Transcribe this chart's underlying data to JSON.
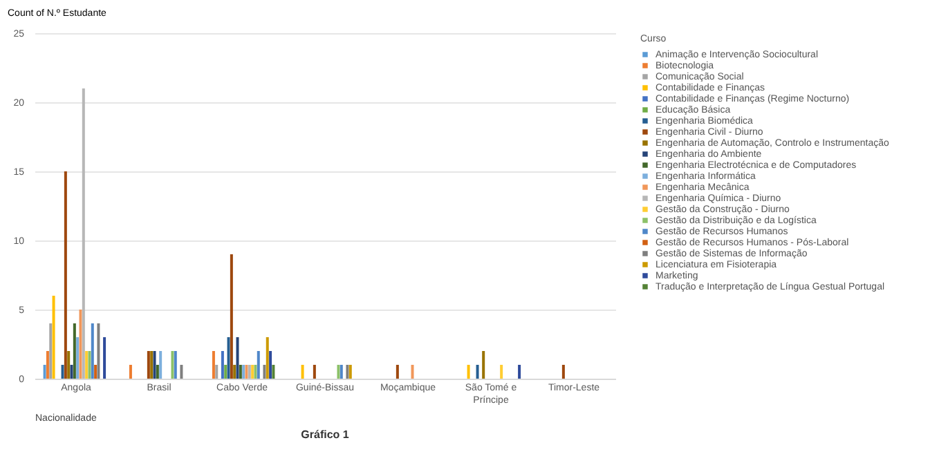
{
  "chart_data": {
    "type": "bar",
    "ylabel": "Count of N.º Estudante",
    "xlabel": "Nacionalidade",
    "legend_title": "Curso",
    "legend": "right",
    "grid": "y",
    "annotations": [
      "Gráfico 1"
    ],
    "categories": [
      "Angola",
      "Brasil",
      "Cabo Verde",
      "Guiné-Bissau",
      "Moçambique",
      "São Tomé e Príncipe",
      "Timor-Leste"
    ],
    "ylim": [
      0,
      25
    ],
    "yticks": [
      0,
      5,
      10,
      15,
      20,
      25
    ],
    "series": [
      {
        "name": "Animação e Intervenção Sociocultural",
        "color": "#5b9bd5",
        "values": [
          1,
          null,
          null,
          null,
          null,
          null,
          null
        ]
      },
      {
        "name": "Biotecnologia",
        "color": "#ed7d31",
        "values": [
          2,
          1,
          2,
          null,
          null,
          null,
          null
        ]
      },
      {
        "name": "Comunicação Social",
        "color": "#a5a5a5",
        "values": [
          4,
          null,
          1,
          null,
          null,
          null,
          null
        ]
      },
      {
        "name": "Contabilidade e Finanças",
        "color": "#ffc000",
        "values": [
          6,
          null,
          null,
          1,
          null,
          1,
          null
        ]
      },
      {
        "name": "Contabilidade e Finanças (Regime Nocturno)",
        "color": "#4472c4",
        "values": [
          null,
          null,
          2,
          null,
          null,
          null,
          null
        ]
      },
      {
        "name": "Educação Básica",
        "color": "#70ad47",
        "values": [
          null,
          null,
          1,
          null,
          null,
          null,
          null
        ]
      },
      {
        "name": "Engenharia Biomédica",
        "color": "#255e91",
        "values": [
          1,
          null,
          3,
          null,
          null,
          1,
          null
        ]
      },
      {
        "name": "Engenharia Civil - Diurno",
        "color": "#9e480e",
        "values": [
          15,
          2,
          9,
          1,
          1,
          null,
          1
        ]
      },
      {
        "name": "Engenharia de Automação, Controlo e Instrumentação",
        "color": "#997300",
        "values": [
          2,
          2,
          1,
          null,
          null,
          2,
          null
        ]
      },
      {
        "name": "Engenharia do Ambiente",
        "color": "#264478",
        "values": [
          1,
          2,
          3,
          null,
          null,
          null,
          null
        ]
      },
      {
        "name": "Engenharia Electrotécnica e de Computadores",
        "color": "#43682b",
        "values": [
          4,
          1,
          1,
          null,
          null,
          null,
          null
        ]
      },
      {
        "name": "Engenharia Informática",
        "color": "#7cafdd",
        "values": [
          3,
          2,
          1,
          null,
          null,
          null,
          null
        ]
      },
      {
        "name": "Engenharia Mecânica",
        "color": "#f1975a",
        "values": [
          5,
          null,
          1,
          null,
          1,
          null,
          null
        ]
      },
      {
        "name": "Engenharia Química - Diurno",
        "color": "#b7b7b7",
        "values": [
          21,
          null,
          1,
          null,
          null,
          null,
          null
        ]
      },
      {
        "name": "Gestão da Construção - Diurno",
        "color": "#ffcd33",
        "values": [
          2,
          null,
          1,
          null,
          null,
          1,
          null
        ]
      },
      {
        "name": "Gestão da Distribuição e da Logística",
        "color": "#8cc168",
        "values": [
          2,
          2,
          1,
          1,
          null,
          null,
          null
        ]
      },
      {
        "name": "Gestão de Recursos Humanos",
        "color": "#4f87c9",
        "values": [
          4,
          2,
          2,
          1,
          null,
          null,
          null
        ]
      },
      {
        "name": "Gestão de Recursos Humanos - Pós-Laboral",
        "color": "#d26012",
        "values": [
          1,
          null,
          null,
          null,
          null,
          null,
          null
        ]
      },
      {
        "name": "Gestão de Sistemas de Informação",
        "color": "#7f7f7f",
        "values": [
          4,
          1,
          1,
          1,
          null,
          null,
          null
        ]
      },
      {
        "name": "Licenciatura em Fisioterapia",
        "color": "#cc9a00",
        "values": [
          null,
          null,
          3,
          1,
          null,
          null,
          null
        ]
      },
      {
        "name": "Marketing",
        "color": "#2f4b9b",
        "values": [
          3,
          null,
          2,
          null,
          null,
          1,
          null
        ]
      },
      {
        "name": "Tradução e Interpretação de Língua Gestual Portugal",
        "color": "#548235",
        "values": [
          null,
          null,
          1,
          null,
          null,
          null,
          null
        ]
      }
    ]
  }
}
